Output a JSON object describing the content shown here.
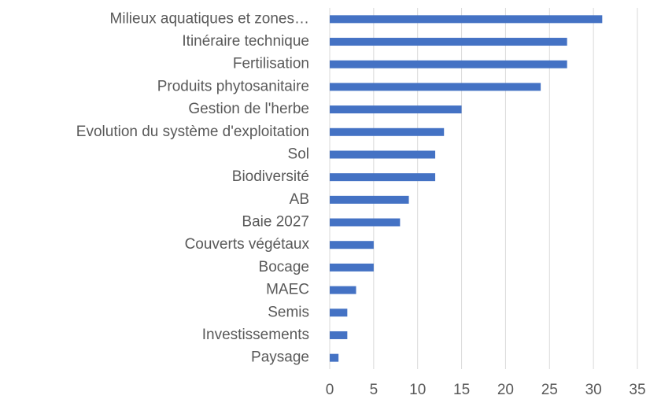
{
  "chart_data": {
    "type": "bar",
    "orientation": "horizontal",
    "categories": [
      "Milieux aquatiques et zones…",
      "Itinéraire technique",
      "Fertilisation",
      "Produits phytosanitaire",
      "Gestion de l'herbe",
      "Evolution du système d'exploitation",
      "Sol",
      "Biodiversité",
      "AB",
      "Baie 2027",
      "Couverts végétaux",
      "Bocage",
      "MAEC",
      "Semis",
      "Investissements",
      "Paysage"
    ],
    "values": [
      31,
      27,
      27,
      24,
      15,
      13,
      12,
      12,
      9,
      8,
      5,
      5,
      3,
      2,
      2,
      1
    ],
    "color": "#4472c4",
    "xlim": [
      0,
      35
    ],
    "xticks": [
      0,
      5,
      10,
      15,
      20,
      25,
      30,
      35
    ],
    "grid": true
  }
}
